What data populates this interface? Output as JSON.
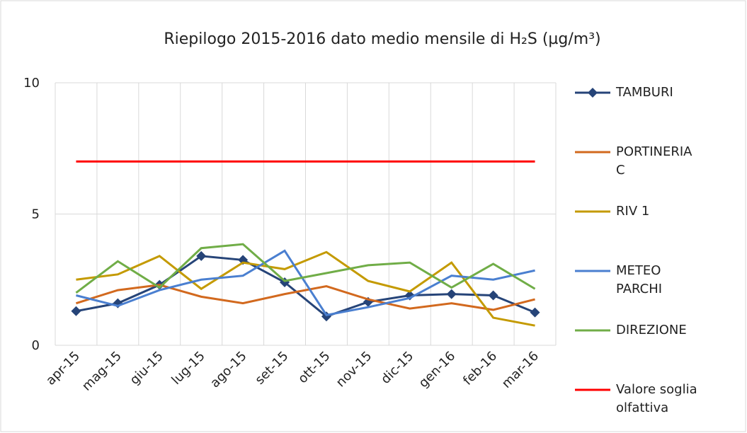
{
  "chart_data": {
    "type": "line",
    "title": "Riepilogo 2015-2016 dato medio mensile di H₂S (µg/m³)",
    "categories": [
      "apr-15",
      "mag-15",
      "giu-15",
      "lug-15",
      "ago-15",
      "set-15",
      "ott-15",
      "nov-15",
      "dic-15",
      "gen-16",
      "feb-16",
      "mar-16"
    ],
    "series": [
      {
        "name": "TAMBURI",
        "color": "#264478",
        "marker": "diamond",
        "values": [
          1.3,
          1.6,
          2.3,
          3.4,
          3.25,
          2.4,
          1.1,
          1.65,
          1.9,
          1.95,
          1.9,
          1.25
        ]
      },
      {
        "name": "PORTINERIA C",
        "color": "#d2691e",
        "values": [
          1.6,
          2.1,
          2.3,
          1.85,
          1.6,
          1.95,
          2.25,
          1.75,
          1.4,
          1.6,
          1.35,
          1.75
        ]
      },
      {
        "name": "RIV 1",
        "color": "#c49a00",
        "values": [
          2.5,
          2.7,
          3.4,
          2.15,
          3.15,
          2.9,
          3.55,
          2.45,
          2.05,
          3.15,
          1.05,
          0.75
        ]
      },
      {
        "name": "METEO PARCHI",
        "color": "#4a7fd0",
        "values": [
          1.9,
          1.5,
          2.1,
          2.5,
          2.65,
          3.6,
          1.15,
          1.45,
          1.8,
          2.65,
          2.5,
          2.85
        ]
      },
      {
        "name": "DIREZIONE",
        "color": "#70ad47",
        "values": [
          2.0,
          3.2,
          2.2,
          3.7,
          3.85,
          2.45,
          2.75,
          3.05,
          3.15,
          2.2,
          3.1,
          2.15
        ]
      },
      {
        "name": "Valore soglia olfattiva",
        "color": "#ff0000",
        "values": [
          7,
          7,
          7,
          7,
          7,
          7,
          7,
          7,
          7,
          7,
          7,
          7
        ]
      }
    ],
    "ylim": [
      0,
      10
    ],
    "yticks": [
      0,
      5,
      10
    ],
    "grid": true
  }
}
